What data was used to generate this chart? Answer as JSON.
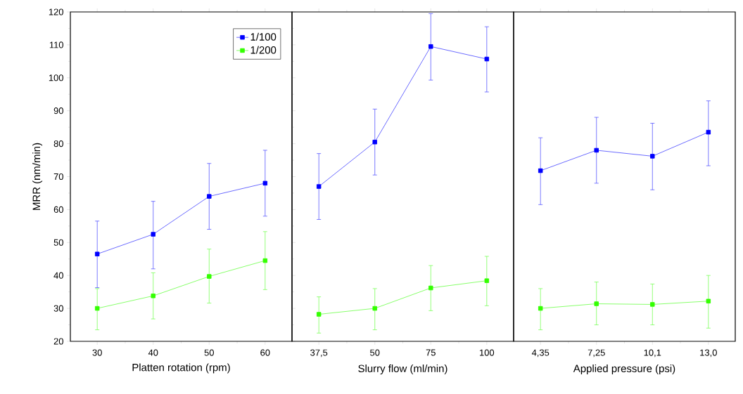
{
  "chart_data": [
    {
      "type": "line",
      "categories": [
        "30",
        "40",
        "50",
        "60"
      ],
      "xlabel": "Platten rotation (rpm)",
      "ylabel": "MRR (nm/min)",
      "ylim": [
        20,
        120
      ],
      "yticks": [
        20,
        30,
        40,
        50,
        60,
        70,
        80,
        90,
        100,
        110,
        120
      ],
      "marker": "square",
      "line_style": "solid",
      "legend": "top right",
      "grid": false,
      "series": [
        {
          "name": "1/100",
          "color": "#0000ff",
          "values": [
            46.5,
            52.5,
            64,
            68
          ],
          "errors": [
            [
              36.3,
              56.5
            ],
            [
              42,
              62.5
            ],
            [
              54,
              74
            ],
            [
              58,
              78
            ]
          ]
        },
        {
          "name": "1/200",
          "color": "#33ff00",
          "values": [
            30,
            33.8,
            39.7,
            44.5
          ],
          "errors": [
            [
              23.5,
              36
            ],
            [
              26.8,
              40.8
            ],
            [
              31.6,
              48
            ],
            [
              35.7,
              53.3
            ]
          ]
        }
      ]
    },
    {
      "type": "line",
      "categories": [
        "37,5",
        "50",
        "75",
        "100"
      ],
      "xlabel": "Slurry flow (ml/min)",
      "ylim": [
        20,
        120
      ],
      "tick_labels": "x",
      "marker": "square",
      "line_style": "solid",
      "series": [
        {
          "color": "#0000ff",
          "values": [
            67,
            80.5,
            109.5,
            105.7
          ],
          "errors": [
            [
              57,
              77
            ],
            [
              70.5,
              90.5
            ],
            [
              99.3,
              119.5
            ],
            [
              95.7,
              115.5
            ]
          ]
        },
        {
          "color": "#33ff00",
          "values": [
            28.2,
            30,
            36.2,
            38.4
          ],
          "errors": [
            [
              22.5,
              33.5
            ],
            [
              23.5,
              36
            ],
            [
              29.3,
              43
            ],
            [
              30.8,
              45.8
            ]
          ]
        }
      ]
    },
    {
      "type": "line",
      "categories": [
        "4,35",
        "7,25",
        "10,1",
        "13,0"
      ],
      "xlabel": "Applied pressure (psi)",
      "ylim": [
        20,
        120
      ],
      "tick_labels": "x",
      "marker": "square",
      "line_style": "solid",
      "series": [
        {
          "color": "#0000ff",
          "values": [
            71.8,
            78,
            76.2,
            83.5
          ],
          "errors": [
            [
              61.5,
              81.8
            ],
            [
              68,
              88
            ],
            [
              66,
              86.2
            ],
            [
              73.3,
              93
            ]
          ]
        },
        {
          "color": "#33ff00",
          "values": [
            30,
            31.4,
            31.2,
            32.2
          ],
          "errors": [
            [
              23.5,
              36
            ],
            [
              25,
              38
            ],
            [
              25,
              37.4
            ],
            [
              24,
              40
            ]
          ]
        }
      ]
    }
  ]
}
